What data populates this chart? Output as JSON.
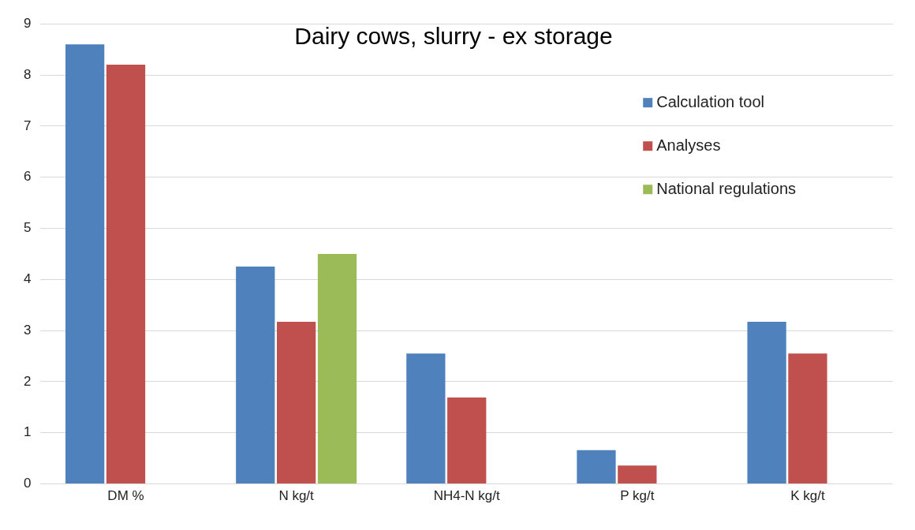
{
  "chart_data": {
    "type": "bar",
    "title": "Dairy cows, slurry - ex storage",
    "categories": [
      "DM %",
      "N kg/t",
      "NH4-N kg/t",
      "P kg/t",
      "K kg/t"
    ],
    "series": [
      {
        "name": "Calculation tool",
        "color": "#4f81bd",
        "values": [
          8.6,
          4.25,
          2.55,
          0.66,
          3.17
        ]
      },
      {
        "name": "Analyses",
        "color": "#c0504d",
        "values": [
          8.2,
          3.17,
          1.69,
          0.36,
          2.55
        ]
      },
      {
        "name": "National regulations",
        "color": "#9bbb59",
        "values": [
          null,
          4.5,
          null,
          null,
          null
        ]
      }
    ],
    "ylim": [
      0,
      9
    ],
    "yticks": [
      0,
      1,
      2,
      3,
      4,
      5,
      6,
      7,
      8,
      9
    ],
    "grid": "y",
    "legend": "top right"
  }
}
